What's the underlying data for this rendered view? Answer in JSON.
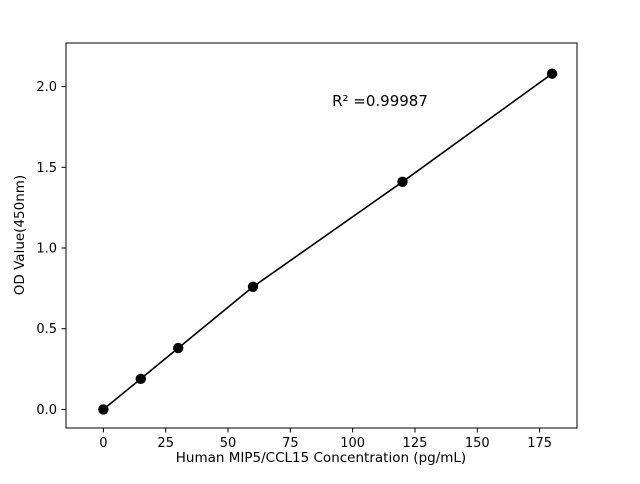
{
  "chart_data": {
    "type": "scatter",
    "title": "",
    "xlabel": "Human MIP5/CCL15 Concentration (pg/mL)",
    "ylabel": "OD Value(450nm)",
    "annotation": "R² =0.99987",
    "x": [
      0,
      15,
      30,
      60,
      120,
      180
    ],
    "y": [
      0.0,
      0.19,
      0.38,
      0.76,
      1.41,
      2.08
    ],
    "xticks": [
      0,
      25,
      50,
      75,
      100,
      125,
      150,
      175
    ],
    "yticks": [
      0.0,
      0.5,
      1.0,
      1.5,
      2.0
    ],
    "xlim": [
      -15,
      190
    ],
    "ylim": [
      -0.115,
      2.27
    ],
    "line_fit": true,
    "grid": false,
    "legend": "none",
    "marker_color": "#000000",
    "line_color": "#000000",
    "axis_color": "#000000",
    "background_color": "#ffffff"
  }
}
